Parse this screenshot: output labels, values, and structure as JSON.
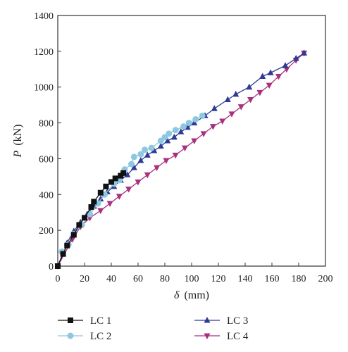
{
  "chart_data": {
    "type": "line",
    "title": "",
    "xlabel": {
      "symbol": "δ",
      "unit": "(mm)"
    },
    "ylabel": {
      "symbol": "P",
      "unit": "(kN)"
    },
    "xlim": [
      0,
      200
    ],
    "ylim": [
      0,
      1400
    ],
    "xticks": [
      0,
      20,
      40,
      60,
      80,
      100,
      120,
      140,
      160,
      180,
      200
    ],
    "yticks": [
      0,
      200,
      400,
      600,
      800,
      1000,
      1200,
      1400
    ],
    "grid": false,
    "legend_position": "bottom",
    "series": [
      {
        "name": "LC 1",
        "color": "#111111",
        "marker": "square",
        "x": [
          0,
          4,
          7,
          12,
          16,
          20,
          25,
          27,
          32,
          36,
          40,
          43,
          47,
          49
        ],
        "y": [
          0,
          68,
          115,
          175,
          230,
          270,
          330,
          360,
          410,
          445,
          470,
          490,
          505,
          520
        ]
      },
      {
        "name": "LC 2",
        "color": "#8ec8e0",
        "marker": "circle",
        "x": [
          3,
          8,
          12,
          18,
          24,
          30,
          35,
          42,
          46,
          50,
          55,
          57,
          62,
          65,
          70,
          77,
          80,
          83,
          88,
          94,
          98,
          103,
          108
        ],
        "y": [
          80,
          120,
          180,
          230,
          290,
          350,
          400,
          460,
          480,
          540,
          570,
          610,
          625,
          650,
          660,
          700,
          720,
          740,
          760,
          780,
          800,
          820,
          840
        ]
      },
      {
        "name": "LC 3",
        "color": "#2e3a94",
        "marker": "triangle-up",
        "x": [
          0,
          7,
          12,
          17,
          22,
          27,
          32,
          37,
          42,
          47,
          52,
          57,
          62,
          67,
          72,
          77,
          82,
          87,
          92,
          97,
          102,
          110,
          117,
          127,
          133,
          143,
          153,
          159,
          170,
          178,
          184
        ],
        "y": [
          0,
          130,
          195,
          245,
          290,
          335,
          375,
          415,
          445,
          480,
          510,
          550,
          590,
          620,
          645,
          670,
          700,
          720,
          750,
          775,
          800,
          840,
          880,
          930,
          960,
          1000,
          1060,
          1080,
          1120,
          1160,
          1190
        ]
      },
      {
        "name": "LC 4",
        "color": "#a8307e",
        "marker": "triangle-down",
        "x": [
          0,
          11,
          17,
          24,
          32,
          39,
          46,
          53,
          60,
          67,
          74,
          81,
          88,
          95,
          102,
          109,
          116,
          123,
          130,
          137,
          144,
          151,
          158,
          165,
          171,
          178,
          184
        ],
        "y": [
          0,
          150,
          220,
          270,
          310,
          350,
          390,
          430,
          470,
          510,
          550,
          590,
          620,
          660,
          700,
          740,
          780,
          810,
          850,
          890,
          930,
          970,
          1010,
          1060,
          1100,
          1150,
          1190
        ]
      }
    ]
  }
}
